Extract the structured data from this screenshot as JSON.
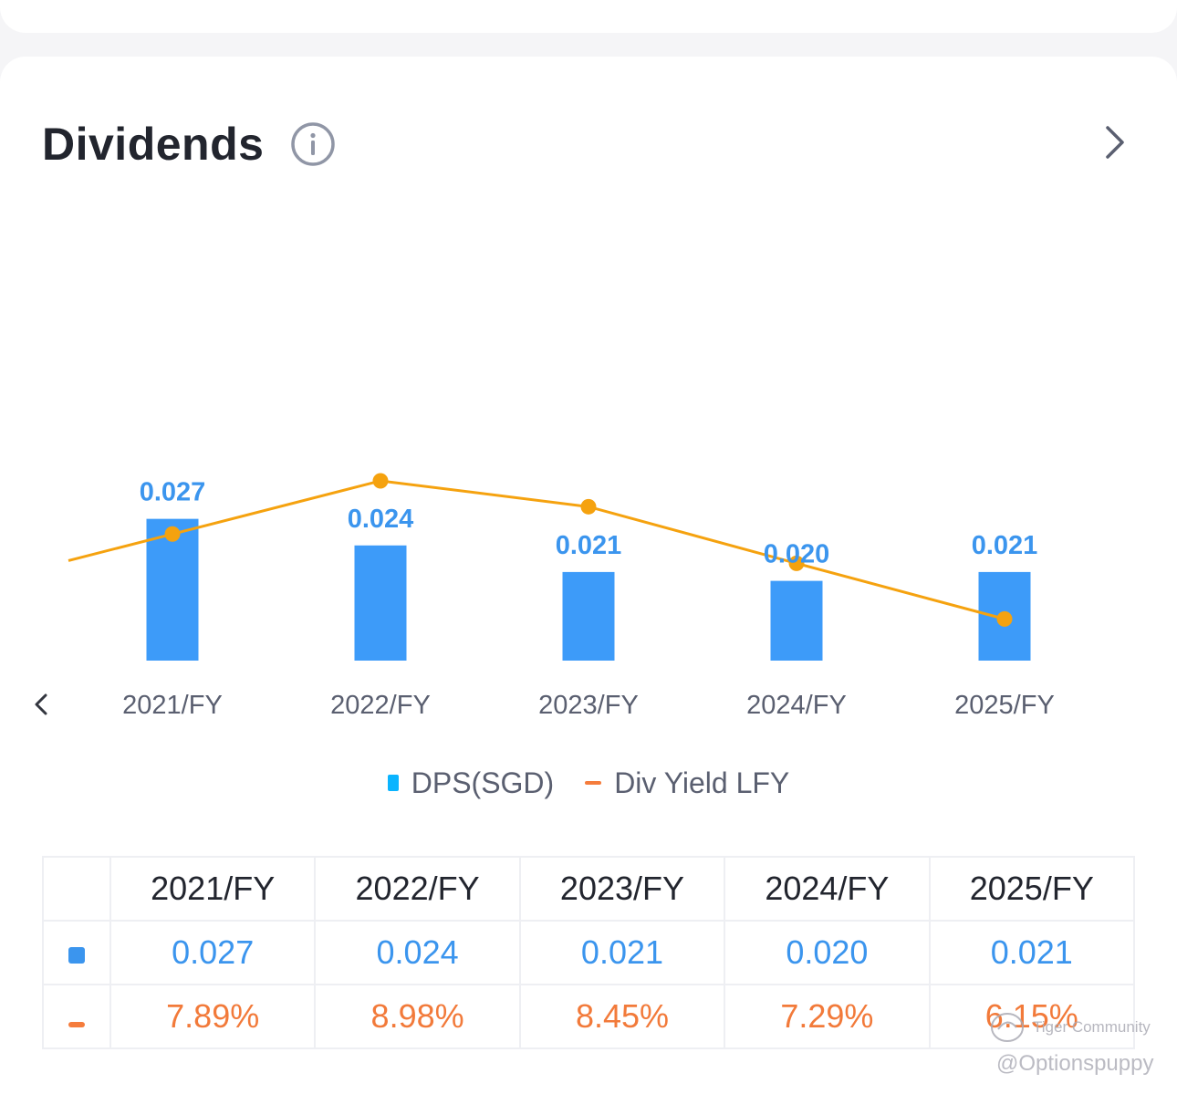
{
  "header": {
    "title": "Dividends"
  },
  "icons": {
    "info": "info-circle-icon",
    "more": "chevron-right-icon",
    "prev": "chevron-left-icon"
  },
  "colors": {
    "bar": "#3d9bf9",
    "line": "#f5a20f",
    "value_label": "#3b95ee",
    "yield_text": "#f27a3a",
    "legend_bar": "#0ab4ff",
    "legend_line": "#f57c3c"
  },
  "chart_data": {
    "type": "bar",
    "categories": [
      "2021/FY",
      "2022/FY",
      "2023/FY",
      "2024/FY",
      "2025/FY"
    ],
    "series": [
      {
        "name": "DPS(SGD)",
        "type": "bar",
        "values": [
          0.027,
          0.024,
          0.021,
          0.02,
          0.021
        ],
        "labels": [
          "0.027",
          "0.024",
          "0.021",
          "0.020",
          "0.021"
        ]
      },
      {
        "name": "Div Yield LFY",
        "type": "line",
        "values": [
          7.89,
          8.98,
          8.45,
          7.29,
          6.15
        ]
      }
    ],
    "legend_position": "bottom-center",
    "grid": false
  },
  "legend": {
    "bar_label": "DPS(SGD)",
    "line_label": "Div Yield LFY"
  },
  "table": {
    "headers": [
      "2021/FY",
      "2022/FY",
      "2023/FY",
      "2024/FY",
      "2025/FY"
    ],
    "dps": [
      "0.027",
      "0.024",
      "0.021",
      "0.020",
      "0.021"
    ],
    "yield": [
      "7.89%",
      "8.98%",
      "8.45%",
      "7.29%",
      "6.15%"
    ]
  },
  "watermark": {
    "brand": "Tiger Community",
    "user": "@Optionspuppy"
  }
}
